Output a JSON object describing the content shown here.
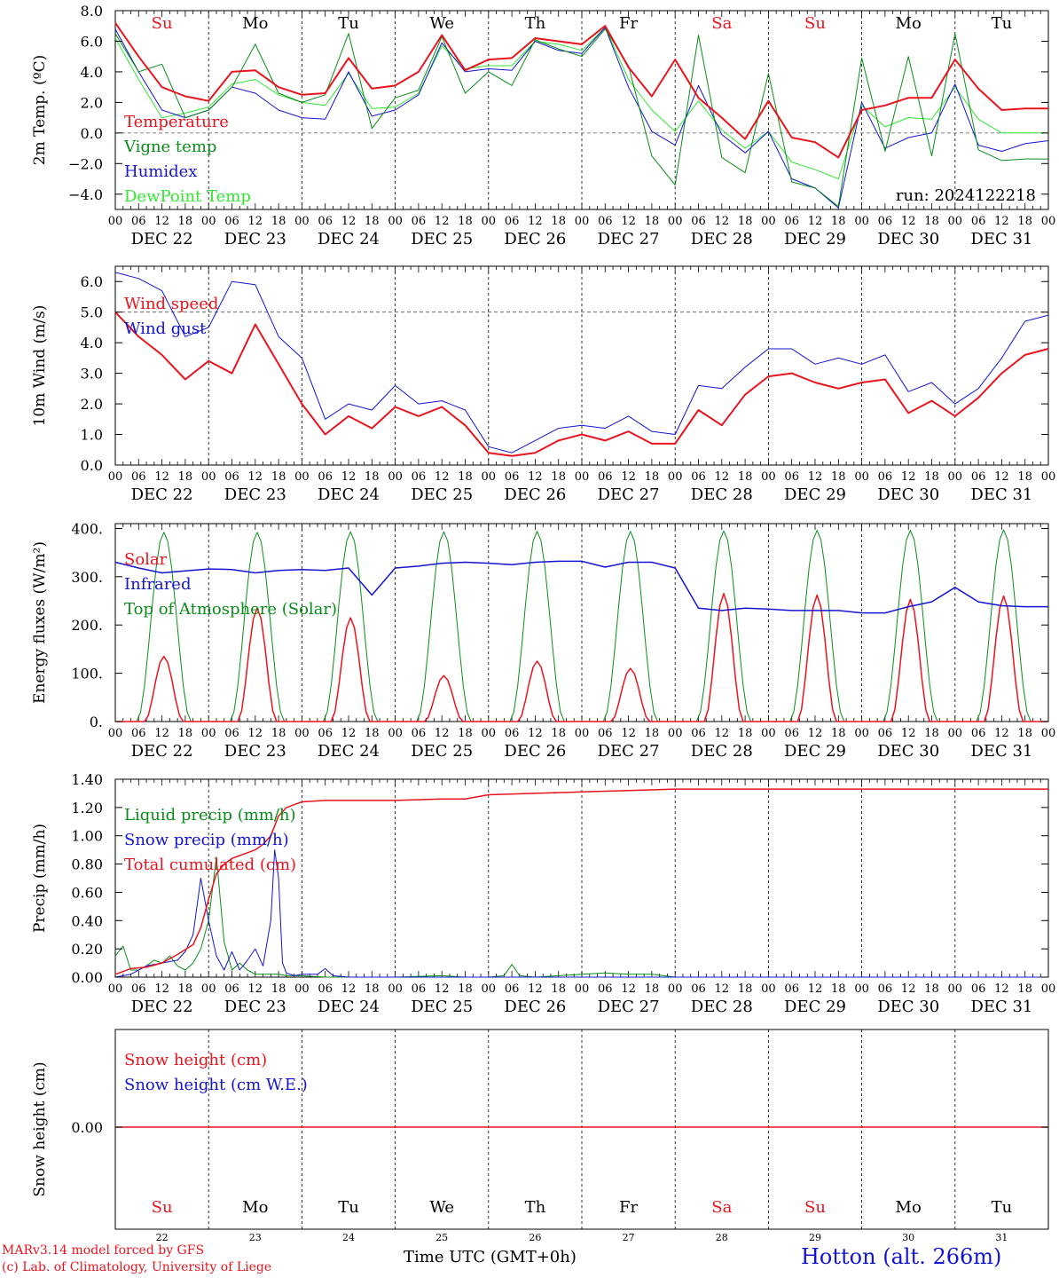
{
  "footer": {
    "left_line1": "MARv3.14 model forced by GFS",
    "left_line2": "(c) Lab. of Climatology, University of Liege",
    "center": "Time UTC (GMT+0h)",
    "right": "Hotton (alt. 266m)"
  },
  "colors": {
    "red": "#e8141e",
    "dark_green": "#0a8c1a",
    "blue": "#1414d2",
    "light_green": "#32e632"
  },
  "days": {
    "weekday_labels": [
      "Su",
      "Mo",
      "Tu",
      "We",
      "Th",
      "Fr",
      "Sa",
      "Su",
      "Mo",
      "Tu"
    ],
    "weekday_colors": [
      "red",
      "black",
      "black",
      "black",
      "black",
      "black",
      "red",
      "red",
      "black",
      "black"
    ],
    "date_labels": [
      "DEC 22",
      "DEC 23",
      "DEC 24",
      "DEC 25",
      "DEC 26",
      "DEC 27",
      "DEC 28",
      "DEC 29",
      "DEC 30",
      "DEC 31"
    ],
    "day_numbers": [
      "22",
      "23",
      "24",
      "25",
      "26",
      "27",
      "28",
      "29",
      "30",
      "31"
    ],
    "hour_ticks": [
      "00",
      "06",
      "12",
      "18"
    ],
    "final_tick": "00"
  },
  "chart_data": [
    {
      "type": "line",
      "ylabel": "2m Temp. (ºC)",
      "ylim": [
        -5,
        8
      ],
      "yticks": [
        "8.0",
        "6.0",
        "4.0",
        "2.0",
        "0.0",
        "−2.0",
        "−4.0"
      ],
      "ytick_values": [
        8,
        6,
        4,
        2,
        0,
        -2,
        -4
      ],
      "dashed_ref": 0,
      "annotation": "run: 2024122218",
      "x_hours": [
        0,
        6,
        12,
        18,
        24,
        30,
        36,
        42,
        48,
        54,
        60,
        66,
        72,
        78,
        84,
        90,
        96,
        102,
        108,
        114,
        120,
        126,
        132,
        138,
        144,
        150,
        156,
        162,
        168,
        174,
        180,
        186,
        192,
        198,
        204,
        210,
        216,
        222,
        228,
        234,
        240
      ],
      "series": [
        {
          "name": "Temperature",
          "color": "red",
          "width": 2,
          "values": [
            7.2,
            5.0,
            3.0,
            2.4,
            2.1,
            4.0,
            4.1,
            3.0,
            2.5,
            2.6,
            4.9,
            2.9,
            3.1,
            4.0,
            6.4,
            4.1,
            4.8,
            4.9,
            6.2,
            6.0,
            5.8,
            7.0,
            4.3,
            2.4,
            4.8,
            2.3,
            1.0,
            -0.4,
            2.1,
            -0.3,
            -0.6,
            -1.6,
            1.5,
            1.8,
            2.3,
            2.3,
            4.8,
            2.9,
            1.5,
            1.6,
            1.6
          ]
        },
        {
          "name": "Vigne temp",
          "color": "dark_green",
          "width": 1,
          "values": [
            6.5,
            4.0,
            4.5,
            1.0,
            1.5,
            3.0,
            5.8,
            2.6,
            2.0,
            2.5,
            6.5,
            0.3,
            2.3,
            2.8,
            6.3,
            2.6,
            4.0,
            3.1,
            6.1,
            5.5,
            5.0,
            6.8,
            4.4,
            -1.5,
            -3.4,
            6.4,
            -1.6,
            -2.6,
            3.9,
            -3.2,
            -3.6,
            -4.8,
            4.9,
            -1.2,
            5.0,
            -1.5,
            6.5,
            -1.1,
            -1.8,
            -1.7,
            -1.7
          ]
        },
        {
          "name": "Humidex",
          "color": "blue",
          "width": 1,
          "values": [
            6.8,
            4.0,
            1.5,
            1.0,
            1.5,
            3.0,
            2.6,
            1.5,
            1.0,
            0.9,
            4.0,
            1.1,
            1.5,
            2.5,
            5.9,
            4.0,
            4.2,
            4.1,
            6.0,
            5.4,
            5.2,
            6.9,
            3.0,
            0.1,
            -0.8,
            3.1,
            -0.1,
            -1.3,
            0.1,
            -3.0,
            -3.6,
            -4.9,
            2.0,
            -1.0,
            -0.3,
            0.0,
            3.2,
            -0.8,
            -1.2,
            -0.7,
            -0.5
          ]
        },
        {
          "name": "DewPoint Temp",
          "color": "light_green",
          "width": 1,
          "values": [
            6.2,
            3.5,
            1.0,
            1.3,
            1.7,
            3.2,
            3.5,
            2.5,
            2.0,
            1.8,
            3.9,
            1.6,
            1.7,
            2.6,
            5.7,
            4.2,
            4.4,
            4.4,
            6.0,
            5.8,
            5.4,
            6.9,
            3.5,
            1.5,
            0.1,
            2.1,
            0.2,
            -1.0,
            0.1,
            -1.9,
            -2.4,
            -3.0,
            1.8,
            0.4,
            1.0,
            0.9,
            3.0,
            0.9,
            0.0,
            0.0,
            0.0
          ]
        }
      ]
    },
    {
      "type": "line",
      "ylabel": "10m Wind (m/s)",
      "ylim": [
        0,
        6.5
      ],
      "yticks": [
        "6.0",
        "5.0",
        "4.0",
        "3.0",
        "2.0",
        "1.0",
        "0.0"
      ],
      "ytick_values": [
        6,
        5,
        4,
        3,
        2,
        1,
        0
      ],
      "dashed_ref": 5,
      "x_hours": [
        0,
        6,
        12,
        18,
        24,
        30,
        36,
        42,
        48,
        54,
        60,
        66,
        72,
        78,
        84,
        90,
        96,
        102,
        108,
        114,
        120,
        126,
        132,
        138,
        144,
        150,
        156,
        162,
        168,
        174,
        180,
        186,
        192,
        198,
        204,
        210,
        216,
        222,
        228,
        234,
        240
      ],
      "series": [
        {
          "name": "Wind speed",
          "color": "red",
          "width": 2,
          "values": [
            5.0,
            4.2,
            3.6,
            2.8,
            3.4,
            3.0,
            4.6,
            3.3,
            2.0,
            1.0,
            1.6,
            1.2,
            1.9,
            1.6,
            1.9,
            1.3,
            0.4,
            0.3,
            0.4,
            0.8,
            1.0,
            0.8,
            1.1,
            0.7,
            0.7,
            1.8,
            1.3,
            2.3,
            2.9,
            3.0,
            2.7,
            2.5,
            2.7,
            2.8,
            1.7,
            2.1,
            1.6,
            2.2,
            3.0,
            3.6,
            3.8
          ]
        },
        {
          "name": "Wind gust",
          "color": "blue",
          "width": 1,
          "values": [
            6.3,
            6.1,
            5.7,
            4.2,
            4.5,
            6.0,
            5.9,
            4.2,
            3.5,
            1.5,
            2.0,
            1.8,
            2.6,
            2.0,
            2.1,
            1.8,
            0.6,
            0.4,
            0.8,
            1.2,
            1.3,
            1.2,
            1.6,
            1.1,
            1.0,
            2.6,
            2.5,
            3.2,
            3.8,
            3.8,
            3.3,
            3.5,
            3.3,
            3.6,
            2.4,
            2.7,
            2.0,
            2.5,
            3.5,
            4.7,
            4.9
          ]
        }
      ]
    },
    {
      "type": "line",
      "ylabel": "Energy fluxes (W/m²)",
      "ylim": [
        0,
        410
      ],
      "yticks": [
        "400.",
        "300.",
        "200.",
        "100.",
        "0."
      ],
      "ytick_values": [
        400,
        300,
        200,
        100,
        0
      ],
      "day_peaks": {
        "solar": [
          135,
          235,
          215,
          95,
          125,
          110,
          265,
          262,
          253,
          260
        ],
        "top_of_atmosphere": [
          392,
          392,
          393,
          393,
          394,
          394,
          395,
          396,
          396,
          397
        ]
      },
      "infrared": {
        "x_hours": [
          0,
          6,
          12,
          18,
          24,
          30,
          36,
          42,
          48,
          54,
          60,
          66,
          72,
          78,
          84,
          90,
          96,
          102,
          108,
          114,
          120,
          126,
          132,
          138,
          144,
          150,
          156,
          162,
          168,
          174,
          180,
          186,
          192,
          198,
          204,
          210,
          216,
          222,
          228,
          234,
          240
        ],
        "values": [
          330,
          318,
          308,
          312,
          316,
          315,
          308,
          313,
          315,
          313,
          318,
          262,
          318,
          322,
          328,
          330,
          328,
          325,
          330,
          332,
          332,
          320,
          330,
          330,
          318,
          235,
          230,
          235,
          233,
          230,
          230,
          230,
          225,
          225,
          238,
          248,
          278,
          248,
          240,
          238,
          238
        ]
      },
      "series": [
        {
          "name": "Solar",
          "color": "red",
          "width": 1.5
        },
        {
          "name": "Infrared",
          "color": "blue",
          "width": 1.5
        },
        {
          "name": "Top of Atmosphere (Solar)",
          "color": "dark_green",
          "width": 1
        }
      ]
    },
    {
      "type": "line",
      "ylabel": "Precip (mm/h)",
      "ylim": [
        0,
        1.4
      ],
      "yticks": [
        "1.40",
        "1.20",
        "1.00",
        "0.80",
        "0.60",
        "0.40",
        "0.20",
        "0.00"
      ],
      "ytick_values": [
        1.4,
        1.2,
        1.0,
        0.8,
        0.6,
        0.4,
        0.2,
        0.0
      ],
      "liquid": {
        "x_hours": [
          0,
          2,
          4,
          6,
          8,
          10,
          12,
          14,
          16,
          18,
          20,
          22,
          24,
          26,
          28,
          30,
          32,
          34,
          36,
          38,
          40,
          42,
          44,
          48,
          54,
          60,
          72,
          84,
          90,
          96,
          100,
          102,
          104,
          108,
          120,
          126,
          132,
          138,
          144,
          240
        ],
        "values": [
          0.15,
          0.22,
          0.05,
          0.05,
          0.08,
          0.12,
          0.1,
          0.15,
          0.08,
          0.05,
          0.1,
          0.2,
          0.4,
          0.85,
          0.25,
          0.05,
          0.1,
          0.05,
          0.02,
          0.02,
          0.02,
          0.02,
          0.01,
          0.01,
          0.0,
          0.0,
          0.0,
          0.01,
          0.0,
          0.0,
          0.01,
          0.09,
          0.01,
          0.0,
          0.02,
          0.03,
          0.02,
          0.02,
          0.0,
          0.0
        ]
      },
      "snow": {
        "x_hours": [
          0,
          4,
          8,
          12,
          16,
          18,
          20,
          22,
          23,
          24,
          26,
          28,
          30,
          32,
          34,
          36,
          38,
          40,
          41,
          42,
          43,
          44,
          46,
          48,
          52,
          54,
          56,
          60,
          96,
          240
        ],
        "values": [
          0.0,
          0.02,
          0.08,
          0.1,
          0.12,
          0.18,
          0.3,
          0.7,
          0.55,
          0.4,
          0.15,
          0.05,
          0.18,
          0.05,
          0.12,
          0.2,
          0.08,
          0.4,
          0.9,
          0.7,
          0.1,
          0.03,
          0.01,
          0.02,
          0.02,
          0.06,
          0.01,
          0.0,
          0.0,
          0.0
        ]
      },
      "cumulated": {
        "x_hours": [
          0,
          4,
          8,
          12,
          16,
          20,
          22,
          24,
          26,
          28,
          30,
          32,
          34,
          36,
          38,
          40,
          42,
          44,
          46,
          48,
          54,
          60,
          72,
          84,
          90,
          96,
          108,
          120,
          132,
          144,
          240
        ],
        "values": [
          0.02,
          0.06,
          0.07,
          0.1,
          0.16,
          0.23,
          0.35,
          0.55,
          0.73,
          0.8,
          0.84,
          0.86,
          0.88,
          0.9,
          0.94,
          1.0,
          1.14,
          1.2,
          1.22,
          1.24,
          1.25,
          1.25,
          1.25,
          1.26,
          1.26,
          1.29,
          1.3,
          1.31,
          1.32,
          1.33,
          1.33
        ]
      },
      "series": [
        {
          "name": "Liquid precip (mm/h)",
          "color": "dark_green",
          "width": 1
        },
        {
          "name": "Snow precip (mm/h)",
          "color": "blue",
          "width": 1
        },
        {
          "name": "Total cumulated (cm)",
          "color": "red",
          "width": 1.5
        }
      ]
    },
    {
      "type": "line",
      "ylabel": "Snow height (cm)",
      "yticks": [
        "0.00"
      ],
      "ytick_values": [
        0
      ],
      "values_constant": 0.0,
      "series": [
        {
          "name": "Snow height (cm)",
          "color": "red",
          "width": 1.5
        },
        {
          "name": "Snow height (cm W.E.)",
          "color": "blue",
          "width": 1
        }
      ]
    }
  ]
}
